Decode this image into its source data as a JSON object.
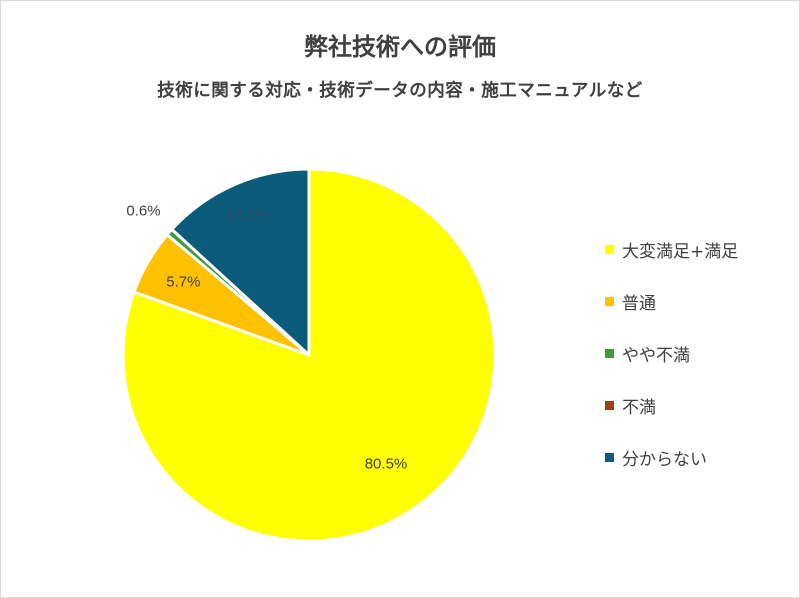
{
  "chart_data": {
    "type": "pie",
    "title": "弊社技術への評価",
    "subtitle": "技術に関する対応・技術データの内容・施工マニュアルなど",
    "categories": [
      "大変満足+満足",
      "普通",
      "やや不満",
      "不満",
      "分からない"
    ],
    "values": [
      80.5,
      5.7,
      0.6,
      0.0,
      13.2
    ],
    "data_labels": [
      "80.5%",
      "5.7%",
      "0.6%",
      "",
      "13.2%"
    ],
    "colors": [
      "#ffff00",
      "#ffc000",
      "#3c9b3c",
      "#9e3f0f",
      "#0b5b7a"
    ],
    "legend_position": "right"
  }
}
